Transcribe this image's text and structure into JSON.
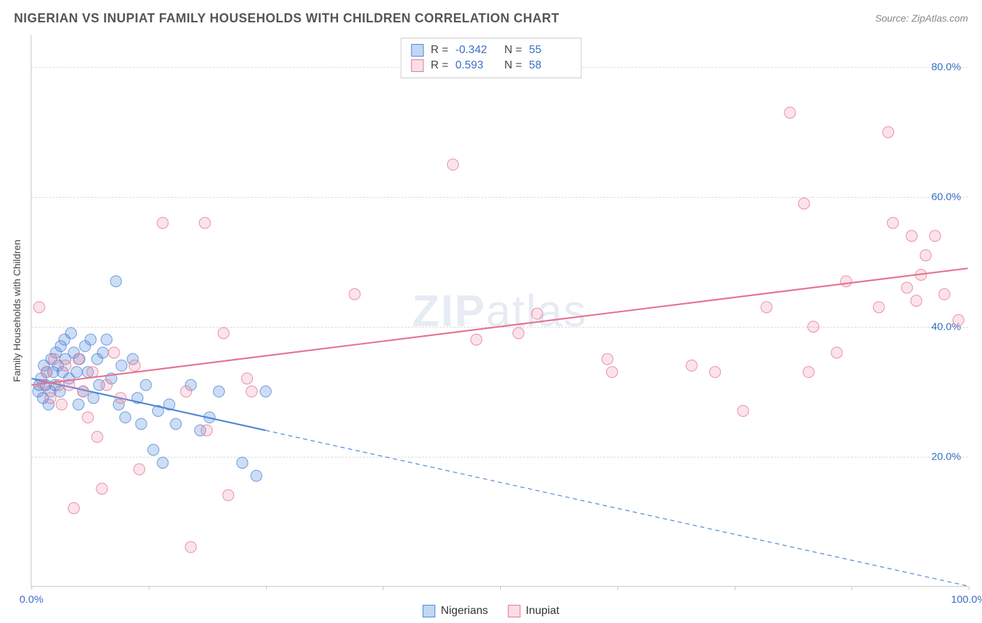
{
  "title": "NIGERIAN VS INUPIAT FAMILY HOUSEHOLDS WITH CHILDREN CORRELATION CHART",
  "source": "Source: ZipAtlas.com",
  "watermark": {
    "bold": "ZIP",
    "thin": "atlas"
  },
  "chart": {
    "type": "scatter",
    "y_axis_label": "Family Households with Children",
    "xlim": [
      0,
      100
    ],
    "ylim": [
      0,
      85
    ],
    "x_ticks": [
      0,
      12.5,
      25,
      37.5,
      50,
      62.5,
      75,
      87.5,
      100
    ],
    "x_tick_labels": {
      "0": "0.0%",
      "100": "100.0%"
    },
    "y_gridlines": [
      20,
      40,
      60,
      80
    ],
    "y_tick_labels": {
      "20": "20.0%",
      "40": "40.0%",
      "60": "60.0%",
      "80": "80.0%"
    },
    "tick_label_color": "#3a6fc5",
    "tick_label_fontsize": 15,
    "grid_color": "#dadada",
    "background_color": "#ffffff",
    "axis_color": "#c9c9c9",
    "marker_radius": 8,
    "marker_stroke_width": 1,
    "marker_fill_opacity": 0.28,
    "marker_stroke_opacity": 0.8,
    "trendline_width_solid": 2.2,
    "trendline_dash": "6,5"
  },
  "series": [
    {
      "name": "Nigerians",
      "color": "#4c86d8",
      "stroke": "#4c86d8",
      "r_value": "-0.342",
      "n_value": "55",
      "trend": {
        "x1": 0,
        "y1": 32,
        "solid_x_end": 25,
        "x2": 100,
        "y2": 0
      },
      "points": [
        [
          0.7,
          30
        ],
        [
          0.8,
          31
        ],
        [
          1.0,
          32
        ],
        [
          1.2,
          29
        ],
        [
          1.3,
          34
        ],
        [
          1.5,
          31
        ],
        [
          1.6,
          33
        ],
        [
          1.8,
          28
        ],
        [
          2.0,
          30
        ],
        [
          2.1,
          35
        ],
        [
          2.3,
          33
        ],
        [
          2.5,
          31
        ],
        [
          2.6,
          36
        ],
        [
          2.8,
          34
        ],
        [
          3.0,
          30
        ],
        [
          3.1,
          37
        ],
        [
          3.3,
          33
        ],
        [
          3.5,
          38
        ],
        [
          3.6,
          35
        ],
        [
          4.0,
          32
        ],
        [
          4.2,
          39
        ],
        [
          4.5,
          36
        ],
        [
          4.8,
          33
        ],
        [
          5.0,
          28
        ],
        [
          5.1,
          35
        ],
        [
          5.5,
          30
        ],
        [
          5.7,
          37
        ],
        [
          6.0,
          33
        ],
        [
          6.3,
          38
        ],
        [
          6.6,
          29
        ],
        [
          7.0,
          35
        ],
        [
          7.2,
          31
        ],
        [
          7.6,
          36
        ],
        [
          8.0,
          38
        ],
        [
          8.5,
          32
        ],
        [
          9.0,
          47
        ],
        [
          9.3,
          28
        ],
        [
          9.6,
          34
        ],
        [
          10.0,
          26
        ],
        [
          10.8,
          35
        ],
        [
          11.3,
          29
        ],
        [
          11.7,
          25
        ],
        [
          12.2,
          31
        ],
        [
          13.0,
          21
        ],
        [
          13.5,
          27
        ],
        [
          14.0,
          19
        ],
        [
          14.7,
          28
        ],
        [
          15.4,
          25
        ],
        [
          17.0,
          31
        ],
        [
          18.0,
          24
        ],
        [
          19.0,
          26
        ],
        [
          20.0,
          30
        ],
        [
          22.5,
          19
        ],
        [
          24.0,
          17
        ],
        [
          25.0,
          30
        ]
      ]
    },
    {
      "name": "Inupiat",
      "color": "#f19cb4",
      "stroke": "#e6738f",
      "r_value": "0.593",
      "n_value": "58",
      "trend": {
        "x1": 0,
        "y1": 31,
        "solid_x_end": 100,
        "x2": 100,
        "y2": 49
      },
      "points": [
        [
          0.8,
          43
        ],
        [
          1.3,
          31
        ],
        [
          1.6,
          33
        ],
        [
          2.0,
          29
        ],
        [
          2.4,
          35
        ],
        [
          2.9,
          31
        ],
        [
          3.2,
          28
        ],
        [
          3.6,
          34
        ],
        [
          4.0,
          31
        ],
        [
          4.5,
          12
        ],
        [
          5.0,
          35
        ],
        [
          5.5,
          30
        ],
        [
          6.0,
          26
        ],
        [
          6.5,
          33
        ],
        [
          7.0,
          23
        ],
        [
          7.5,
          15
        ],
        [
          8.0,
          31
        ],
        [
          8.8,
          36
        ],
        [
          9.5,
          29
        ],
        [
          11.0,
          34
        ],
        [
          11.5,
          18
        ],
        [
          14.0,
          56
        ],
        [
          16.5,
          30
        ],
        [
          17.0,
          6
        ],
        [
          18.5,
          56
        ],
        [
          18.7,
          24
        ],
        [
          20.5,
          39
        ],
        [
          21.0,
          14
        ],
        [
          23.0,
          32
        ],
        [
          23.5,
          30
        ],
        [
          34.5,
          45
        ],
        [
          45.0,
          65
        ],
        [
          47.5,
          38
        ],
        [
          52.0,
          39
        ],
        [
          54.0,
          42
        ],
        [
          61.5,
          35
        ],
        [
          62.0,
          33
        ],
        [
          70.5,
          34
        ],
        [
          73.0,
          33
        ],
        [
          76.0,
          27
        ],
        [
          78.5,
          43
        ],
        [
          81.0,
          73
        ],
        [
          82.5,
          59
        ],
        [
          83.0,
          33
        ],
        [
          83.5,
          40
        ],
        [
          86.0,
          36
        ],
        [
          87.0,
          47
        ],
        [
          90.5,
          43
        ],
        [
          91.5,
          70
        ],
        [
          92.0,
          56
        ],
        [
          93.5,
          46
        ],
        [
          94.0,
          54
        ],
        [
          94.5,
          44
        ],
        [
          95.0,
          48
        ],
        [
          95.5,
          51
        ],
        [
          96.5,
          54
        ],
        [
          97.5,
          45
        ],
        [
          99.0,
          41
        ]
      ]
    }
  ],
  "legend_top": {
    "r_label": "R =",
    "n_label": "N ="
  },
  "legend_bottom": {
    "items": [
      "Nigerians",
      "Inupiat"
    ]
  }
}
